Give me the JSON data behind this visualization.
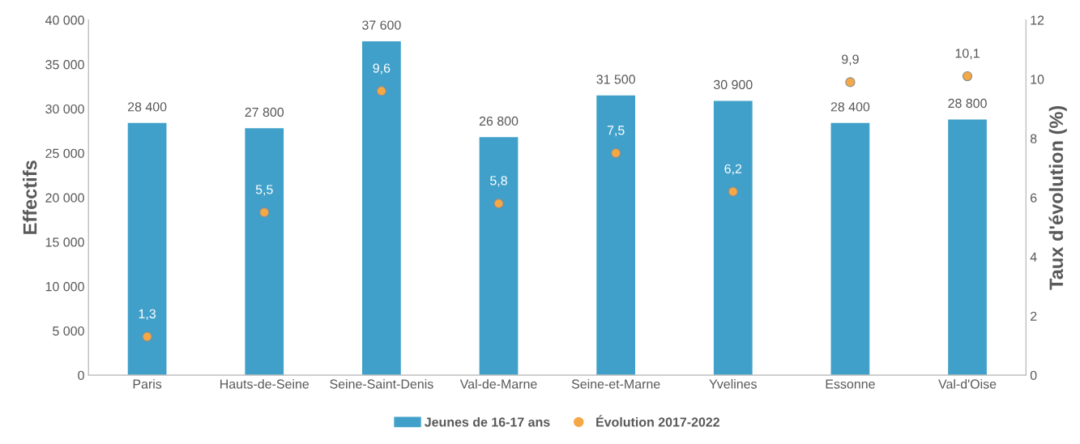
{
  "chart_data": {
    "type": "bar",
    "categories": [
      "Paris",
      "Hauts-de-Seine",
      "Seine-Saint-Denis",
      "Val-de-Marne",
      "Seine-et-Marne",
      "Yvelines",
      "Essonne",
      "Val-d'Oise"
    ],
    "ylabel": "Effectifs",
    "y2label": "Taux d'évolution (%)",
    "series": [
      {
        "name": "Jeunes de 16-17 ans",
        "color": "#41a0c9",
        "values": [
          28400,
          27800,
          37600,
          26800,
          31500,
          30900,
          28400,
          28800
        ],
        "value_labels": [
          "28 400",
          "27 800",
          "37 600",
          "26 800",
          "31 500",
          "30 900",
          "28 400",
          "28 800"
        ]
      },
      {
        "name": "Évolution 2017-2022",
        "type": "scatter",
        "axis": "y2",
        "color": "#f5a846",
        "marker": "circle",
        "values": [
          1.3,
          5.5,
          9.6,
          5.8,
          7.5,
          6.2,
          9.9,
          10.1
        ],
        "value_labels": [
          "1,3",
          "5,5",
          "9,6",
          "5,8",
          "7,5",
          "6,2",
          "9,9",
          "10,1"
        ]
      }
    ],
    "ylim": [
      0,
      40000
    ],
    "yticks": [
      {
        "value": 0,
        "label": "0"
      },
      {
        "value": 5000,
        "label": "5 000"
      },
      {
        "value": 10000,
        "label": "10 000"
      },
      {
        "value": 15000,
        "label": "15 000"
      },
      {
        "value": 20000,
        "label": "20 000"
      },
      {
        "value": 25000,
        "label": "25 000"
      },
      {
        "value": 30000,
        "label": "30 000"
      },
      {
        "value": 35000,
        "label": "35 000"
      },
      {
        "value": 40000,
        "label": "40 000"
      }
    ],
    "y2lim": [
      0,
      12
    ],
    "y2ticks": [
      0,
      2,
      4,
      6,
      8,
      10,
      12
    ],
    "grid": false,
    "legend": "bottom"
  }
}
